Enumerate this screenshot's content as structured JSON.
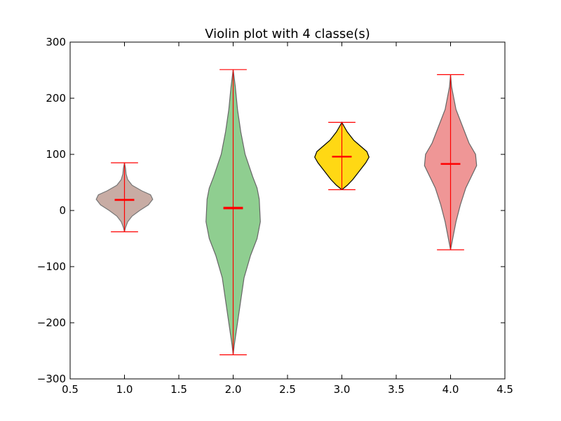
{
  "chart_data": {
    "type": "violin",
    "title": "Violin plot with 4 classe(s)",
    "xlabel": "",
    "ylabel": "",
    "xlim": [
      0.5,
      4.5
    ],
    "ylim": [
      -300,
      300
    ],
    "xticks": [
      0.5,
      1.0,
      1.5,
      2.0,
      2.5,
      3.0,
      3.5,
      4.0,
      4.5
    ],
    "xtick_labels": [
      "0.5",
      "1.0",
      "1.5",
      "2.0",
      "2.5",
      "3.0",
      "3.5",
      "4.0",
      "4.5"
    ],
    "yticks": [
      -300,
      -200,
      -100,
      0,
      100,
      200,
      300
    ],
    "ytick_labels": [
      "−300",
      "−200",
      "−100",
      "0",
      "100",
      "200",
      "300"
    ],
    "grid": false,
    "line_color": "#ff0000",
    "violins": [
      {
        "position": 1.0,
        "min": -38,
        "max": 85,
        "mean": 19,
        "median": 18,
        "fill": "#c8aca4",
        "edge": "#777777",
        "profile": [
          [
            -38,
            0.0
          ],
          [
            -30,
            0.01
          ],
          [
            -20,
            0.03
          ],
          [
            -10,
            0.07
          ],
          [
            0,
            0.14
          ],
          [
            10,
            0.22
          ],
          [
            20,
            0.26
          ],
          [
            28,
            0.24
          ],
          [
            35,
            0.16
          ],
          [
            45,
            0.07
          ],
          [
            55,
            0.03
          ],
          [
            65,
            0.015
          ],
          [
            75,
            0.01
          ],
          [
            85,
            0.0
          ]
        ]
      },
      {
        "position": 2.0,
        "min": -257,
        "max": 251,
        "mean": 5,
        "median": 3,
        "fill": "#8fce90",
        "edge": "#666666",
        "profile": [
          [
            -257,
            0.0
          ],
          [
            -240,
            0.01
          ],
          [
            -200,
            0.04
          ],
          [
            -160,
            0.07
          ],
          [
            -120,
            0.1
          ],
          [
            -80,
            0.16
          ],
          [
            -50,
            0.22
          ],
          [
            -20,
            0.25
          ],
          [
            20,
            0.24
          ],
          [
            40,
            0.22
          ],
          [
            60,
            0.18
          ],
          [
            100,
            0.11
          ],
          [
            140,
            0.07
          ],
          [
            180,
            0.04
          ],
          [
            220,
            0.02
          ],
          [
            251,
            0.0
          ]
        ]
      },
      {
        "position": 3.0,
        "min": 37,
        "max": 157,
        "mean": 96,
        "median": 96,
        "fill": "#ffd814",
        "edge": "#000000",
        "profile": [
          [
            37,
            0.0
          ],
          [
            45,
            0.05
          ],
          [
            55,
            0.1
          ],
          [
            70,
            0.16
          ],
          [
            85,
            0.22
          ],
          [
            95,
            0.25
          ],
          [
            105,
            0.23
          ],
          [
            115,
            0.17
          ],
          [
            125,
            0.11
          ],
          [
            140,
            0.05
          ],
          [
            150,
            0.02
          ],
          [
            157,
            0.0
          ]
        ]
      },
      {
        "position": 4.0,
        "min": -70,
        "max": 242,
        "mean": 83,
        "median": 83,
        "fill": "#ef9696",
        "edge": "#666666",
        "profile": [
          [
            -70,
            0.0
          ],
          [
            -50,
            0.02
          ],
          [
            -20,
            0.05
          ],
          [
            10,
            0.09
          ],
          [
            40,
            0.14
          ],
          [
            60,
            0.19
          ],
          [
            80,
            0.24
          ],
          [
            100,
            0.23
          ],
          [
            120,
            0.17
          ],
          [
            150,
            0.11
          ],
          [
            180,
            0.05
          ],
          [
            200,
            0.03
          ],
          [
            220,
            0.01
          ],
          [
            242,
            0.0
          ]
        ]
      }
    ]
  }
}
